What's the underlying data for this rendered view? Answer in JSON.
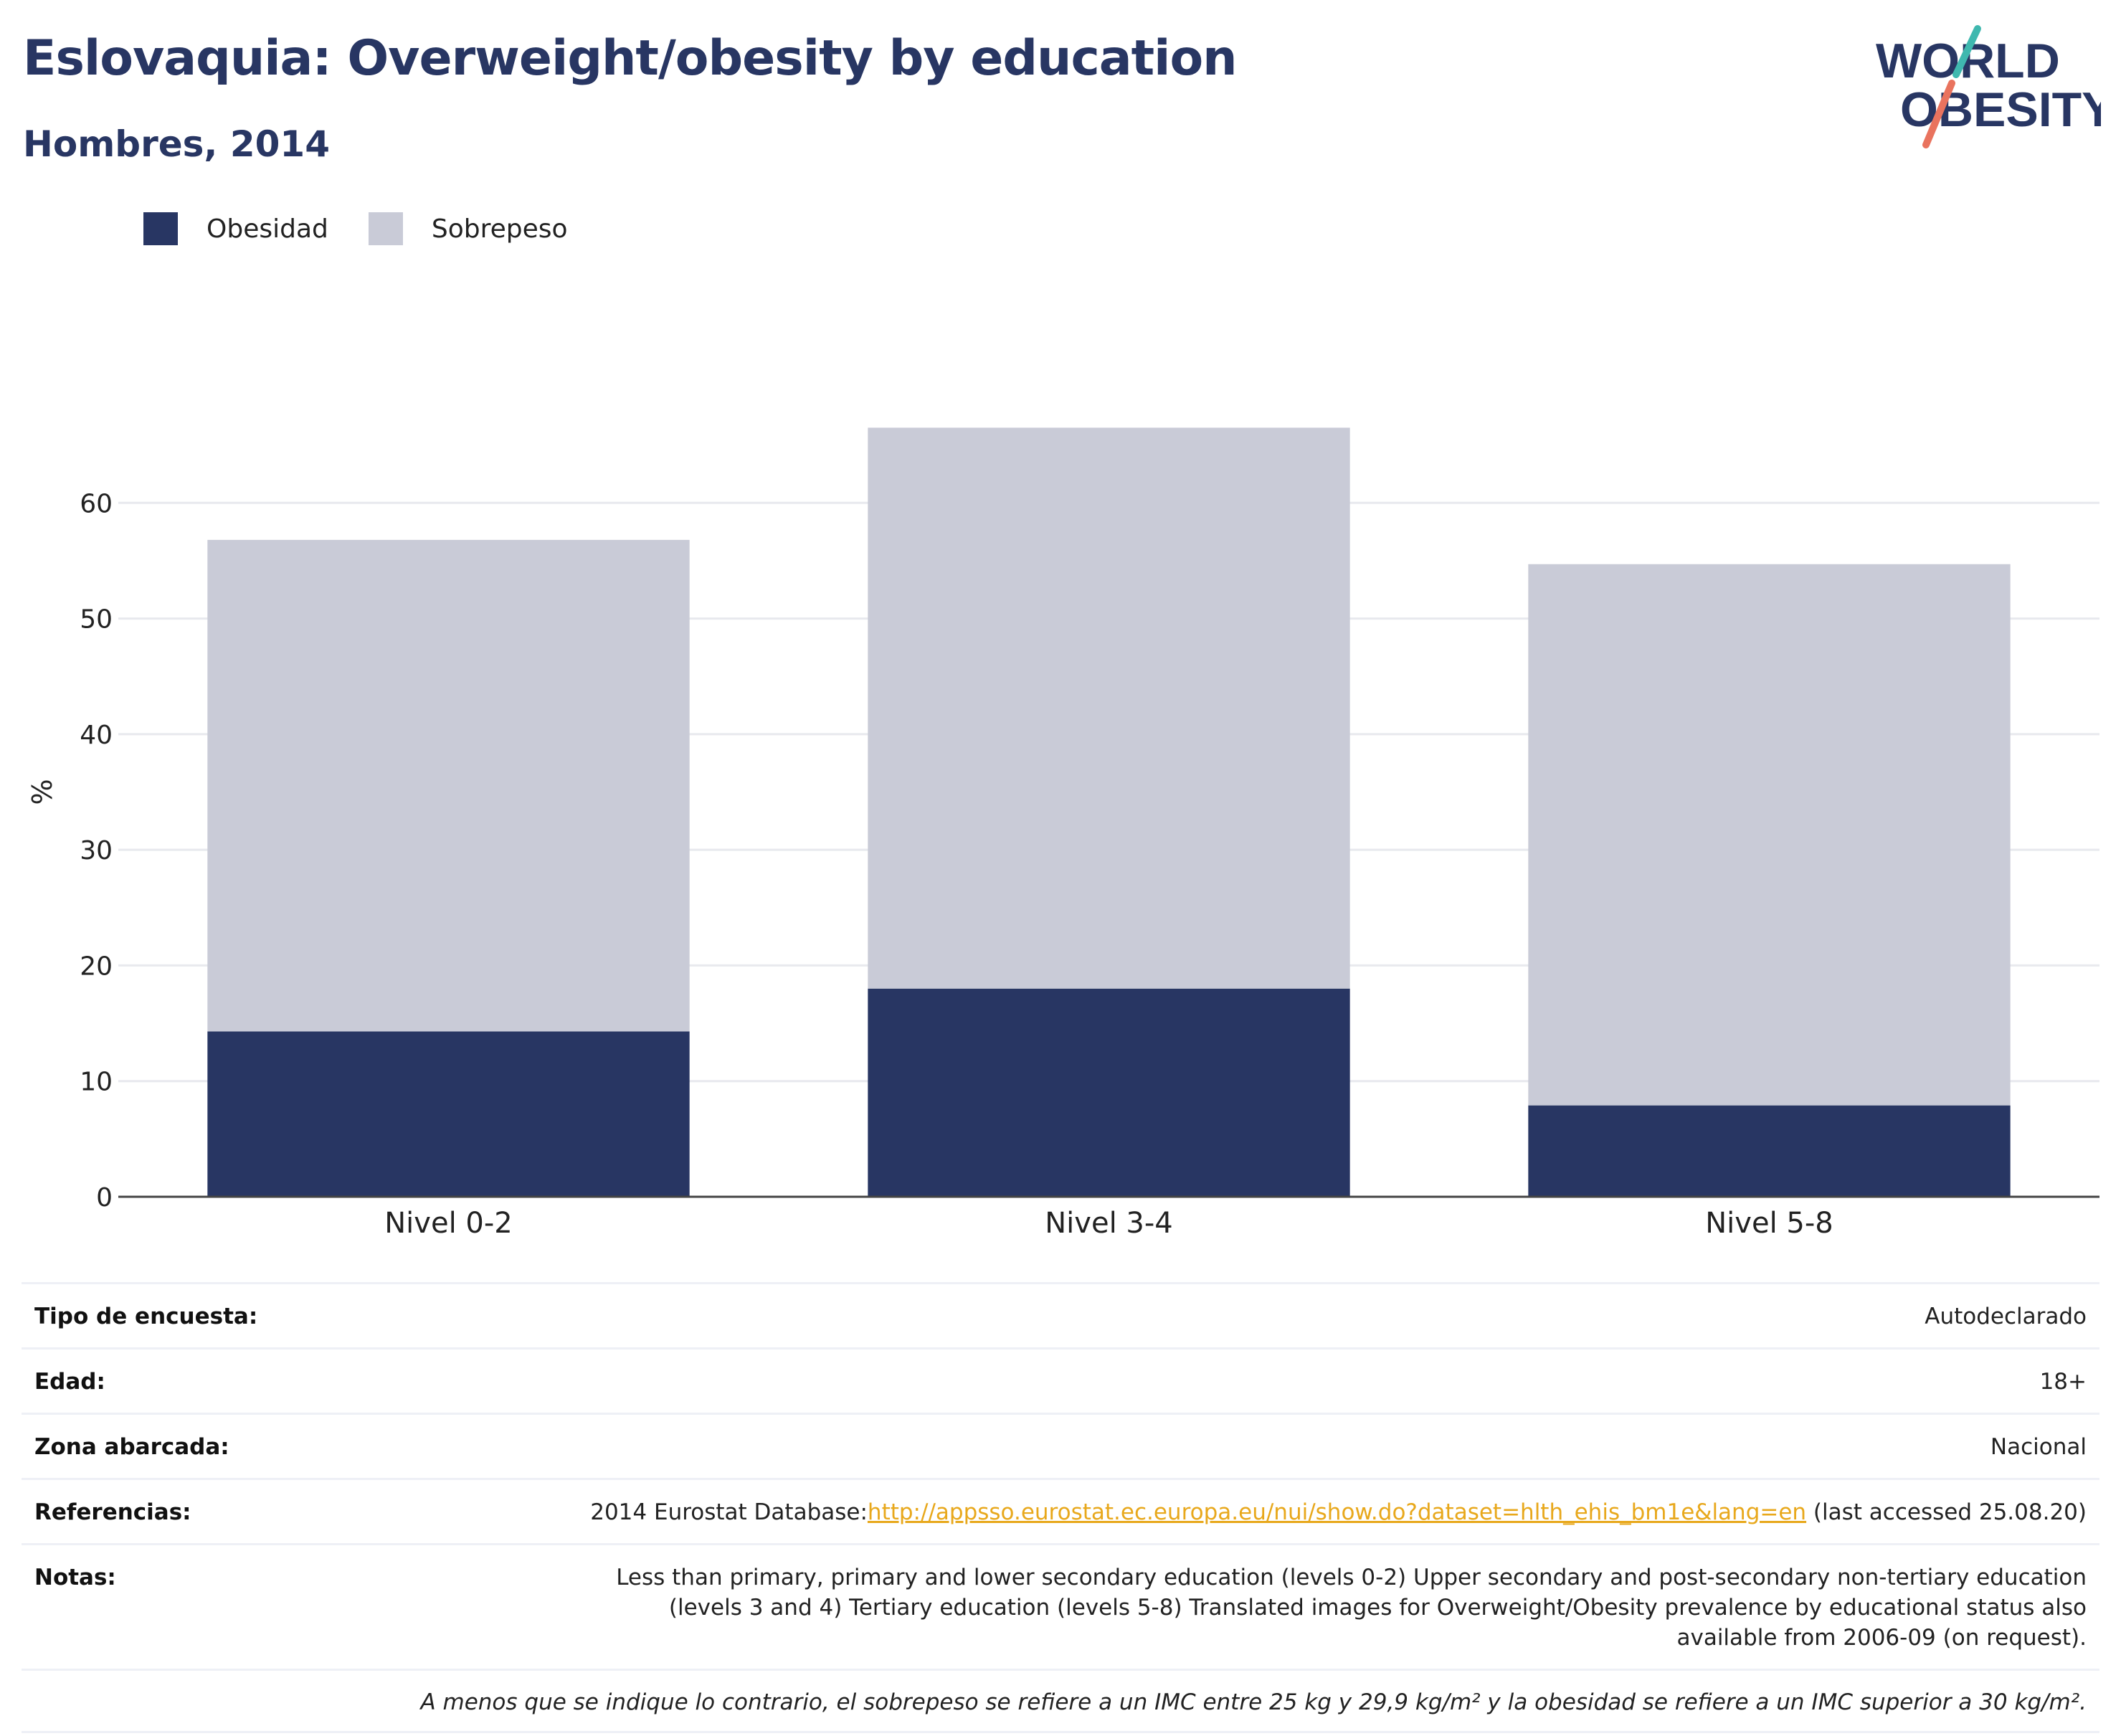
{
  "header": {
    "title": "Eslovaquia: Overweight/obesity by education",
    "subtitle": "Hombres, 2014"
  },
  "logo": {
    "line1": "WORLD",
    "line2": "OBESITY"
  },
  "legend": [
    {
      "label": "Obesidad",
      "color": "#283663"
    },
    {
      "label": "Sobrepeso",
      "color": "#c9cbd7"
    }
  ],
  "chart_data": {
    "type": "bar",
    "stacked": true,
    "categories": [
      "Nivel 0-2",
      "Nivel 3-4",
      "Nivel 5-8"
    ],
    "series": [
      {
        "name": "Obesidad",
        "values": [
          14.3,
          18.0,
          7.9
        ],
        "color": "#283663"
      },
      {
        "name": "Sobrepeso",
        "values": [
          42.5,
          48.5,
          46.8
        ],
        "color": "#c9cbd7"
      }
    ],
    "ylabel": "%",
    "ylim": [
      0,
      70
    ],
    "yticks": [
      0,
      10,
      20,
      30,
      40,
      50,
      60
    ],
    "grid": true,
    "legend_position": "top-left"
  },
  "info": {
    "survey_type": {
      "label": "Tipo de encuesta:",
      "value": "Autodeclarado"
    },
    "age": {
      "label": "Edad:",
      "value": "18+"
    },
    "area": {
      "label": "Zona abarcada:",
      "value": "Nacional"
    },
    "references": {
      "label": "Referencias:",
      "prefix": "2014 Eurostat Database:",
      "link": "http://appsso.eurostat.ec.europa.eu/nui/show.do?dataset=hlth_ehis_bm1e&lang=en",
      "suffix": " (last accessed 25.08.20)"
    },
    "notes": {
      "label": "Notas:",
      "value": "Less than primary, primary and lower secondary education (levels 0-2) Upper secondary and post-secondary non-tertiary education (levels 3 and 4) Tertiary education (levels 5-8) Translated images for Overweight/Obesity prevalence by educational status also available from 2006-09 (on request)."
    },
    "footnote": "A menos que se indique lo contrario, el sobrepeso se refiere a un IMC entre 25 kg y 29,9 kg/m² y la obesidad se refiere a un IMC superior a 30 kg/m²."
  }
}
